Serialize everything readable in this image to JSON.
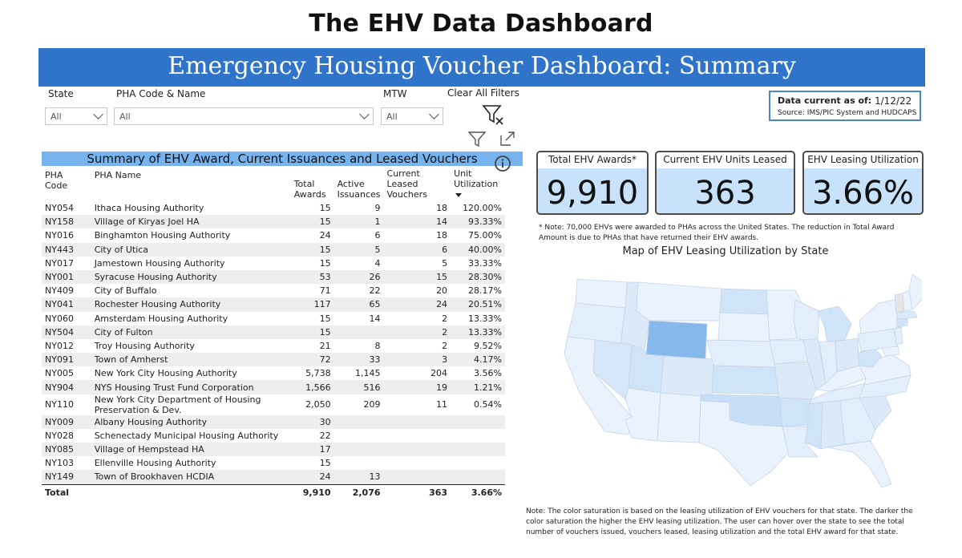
{
  "page_title": "The EHV Data Dashboard",
  "banner_title": "Emergency Housing Voucher Dashboard: Summary",
  "filters": {
    "state": {
      "label": "State",
      "value": "All"
    },
    "pha": {
      "label": "PHA Code & Name",
      "value": "All"
    },
    "mtw": {
      "label": "MTW",
      "value": "All"
    },
    "clear_label": "Clear All Filters"
  },
  "icons": {
    "clear_filter": "filter-clear-icon",
    "filter": "filter-icon",
    "focus": "focus-mode-icon",
    "info": "info-icon"
  },
  "data_current": {
    "label": "Data current as of:",
    "date": "1/12/22",
    "source": "Source: IMS/PIC System and HUDCAPS"
  },
  "kpis": [
    {
      "label": "Total EHV Awards*",
      "value": "9,910"
    },
    {
      "label": "Current EHV Units Leased",
      "value": "363"
    },
    {
      "label": "EHV Leasing Utilization",
      "value": "3.66%"
    }
  ],
  "awards_note": "* Note: 70,000 EHVs were awarded to PHAs across the United States.  The reduction in Total Award Amount is due to PHAs that have returned their EHV awards.",
  "table": {
    "title": "Summary of EHV Award, Current Issuances and Leased Vouchers",
    "headers": {
      "code": "PHA Code",
      "name": "PHA Name",
      "awards": [
        "Total",
        "Awards"
      ],
      "issuances": [
        "Active",
        "Issuances"
      ],
      "leased": [
        "Current Leased",
        "Vouchers"
      ],
      "util": [
        "Unit",
        "Utilization"
      ]
    },
    "rows": [
      {
        "code": "NY054",
        "name": "Ithaca Housing Authority",
        "awards": "15",
        "issuances": "9",
        "leased": "18",
        "util": "120.00%"
      },
      {
        "code": "NY158",
        "name": "Village of Kiryas Joel HA",
        "awards": "15",
        "issuances": "1",
        "leased": "14",
        "util": "93.33%"
      },
      {
        "code": "NY016",
        "name": "Binghamton Housing Authority",
        "awards": "24",
        "issuances": "6",
        "leased": "18",
        "util": "75.00%"
      },
      {
        "code": "NY443",
        "name": "City of Utica",
        "awards": "15",
        "issuances": "5",
        "leased": "6",
        "util": "40.00%"
      },
      {
        "code": "NY017",
        "name": "Jamestown Housing Authority",
        "awards": "15",
        "issuances": "4",
        "leased": "5",
        "util": "33.33%"
      },
      {
        "code": "NY001",
        "name": "Syracuse Housing Authority",
        "awards": "53",
        "issuances": "26",
        "leased": "15",
        "util": "28.30%"
      },
      {
        "code": "NY409",
        "name": "City of Buffalo",
        "awards": "71",
        "issuances": "22",
        "leased": "20",
        "util": "28.17%"
      },
      {
        "code": "NY041",
        "name": "Rochester Housing Authority",
        "awards": "117",
        "issuances": "65",
        "leased": "24",
        "util": "20.51%"
      },
      {
        "code": "NY060",
        "name": "Amsterdam Housing Authority",
        "awards": "15",
        "issuances": "14",
        "leased": "2",
        "util": "13.33%"
      },
      {
        "code": "NY504",
        "name": "City of Fulton",
        "awards": "15",
        "issuances": "",
        "leased": "2",
        "util": "13.33%"
      },
      {
        "code": "NY012",
        "name": "Troy Housing Authority",
        "awards": "21",
        "issuances": "8",
        "leased": "2",
        "util": "9.52%"
      },
      {
        "code": "NY091",
        "name": "Town of Amherst",
        "awards": "72",
        "issuances": "33",
        "leased": "3",
        "util": "4.17%"
      },
      {
        "code": "NY005",
        "name": "New York City Housing Authority",
        "awards": "5,738",
        "issuances": "1,145",
        "leased": "204",
        "util": "3.56%"
      },
      {
        "code": "NY904",
        "name": "NYS Housing Trust Fund Corporation",
        "awards": "1,566",
        "issuances": "516",
        "leased": "19",
        "util": "1.21%"
      },
      {
        "code": "NY110",
        "name": "New York City Department of Housing Preservation & Dev.",
        "awards": "2,050",
        "issuances": "209",
        "leased": "11",
        "util": "0.54%"
      },
      {
        "code": "NY009",
        "name": "Albany Housing Authority",
        "awards": "30",
        "issuances": "",
        "leased": "",
        "util": ""
      },
      {
        "code": "NY028",
        "name": "Schenectady Municipal Housing Authority",
        "awards": "22",
        "issuances": "",
        "leased": "",
        "util": ""
      },
      {
        "code": "NY085",
        "name": "Village of Hempstead HA",
        "awards": "17",
        "issuances": "",
        "leased": "",
        "util": ""
      },
      {
        "code": "NY103",
        "name": "Ellenville Housing Authority",
        "awards": "15",
        "issuances": "",
        "leased": "",
        "util": ""
      },
      {
        "code": "NY149",
        "name": "Town of Brookhaven HCDIA",
        "awards": "24",
        "issuances": "13",
        "leased": "",
        "util": ""
      }
    ],
    "total": {
      "label": "Total",
      "awards": "9,910",
      "issuances": "2,076",
      "leased": "363",
      "util": "3.66%"
    }
  },
  "map": {
    "title": "Map of EHV Leasing Utilization by State",
    "note": "Note: The color saturation is based on the leasing utilization of EHV vouchers for that state.  The darker the color saturation the higher the EHV leasing utilization.  The user can hover over the state to see the total number of vouchers issued, vouchers leased, leasing utilization and the total EHV award for that state."
  },
  "colors": {
    "banner": "#2f74c9",
    "kpi_fill": "#c9e2fb",
    "table_title": "#77b4ef",
    "map_light": "#eaf3fd",
    "map_mid": "#cfe3f9",
    "map_dark": "#86b8ec"
  }
}
